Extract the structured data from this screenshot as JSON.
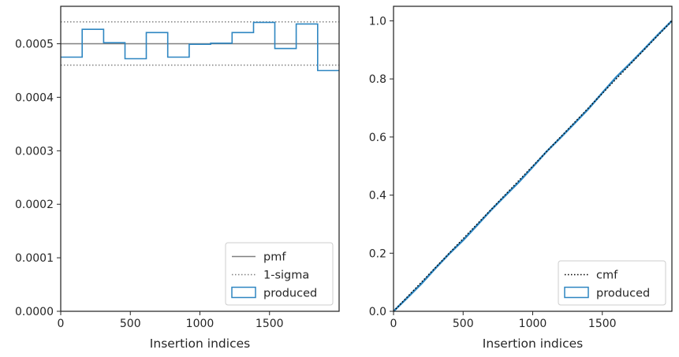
{
  "chart_data": [
    {
      "type": "histogram-step",
      "xlabel": "Insertion indices",
      "ylabel": "",
      "xlim": [
        0,
        2000
      ],
      "ylim": [
        0,
        0.00057
      ],
      "xticks": [
        0,
        500,
        1000,
        1500
      ],
      "xtick_labels": [
        "0",
        "500",
        "1000",
        "1500"
      ],
      "yticks": [
        0,
        0.0001,
        0.0002,
        0.0003,
        0.0004,
        0.0005
      ],
      "ytick_labels": [
        "0.0000",
        "0.0001",
        "0.0002",
        "0.0003",
        "0.0004",
        "0.0005"
      ],
      "grid": false,
      "legend_position": "lower-right",
      "reference_lines": {
        "pmf": 0.0005,
        "sigma_upper": 0.000541,
        "sigma_lower": 0.00046
      },
      "histogram": {
        "bin_edges": [
          0,
          154,
          308,
          462,
          615,
          769,
          923,
          1077,
          1231,
          1385,
          1538,
          1692,
          1846,
          2000
        ],
        "values": [
          0.000475,
          0.000527,
          0.000502,
          0.000472,
          0.000521,
          0.000475,
          0.000499,
          0.000501,
          0.000521,
          0.00054,
          0.000491,
          0.000537,
          0.00045
        ]
      },
      "legend": [
        {
          "label": "pmf",
          "style": "solid",
          "color": "#808080"
        },
        {
          "label": "1-sigma",
          "style": "dotted",
          "color": "#808080"
        },
        {
          "label": "produced",
          "style": "box",
          "color": "#2e86c1"
        }
      ]
    },
    {
      "type": "line",
      "xlabel": "Insertion indices",
      "ylabel": "",
      "xlim": [
        0,
        2000
      ],
      "ylim": [
        0,
        1.05
      ],
      "xticks": [
        0,
        500,
        1000,
        1500
      ],
      "xtick_labels": [
        "0",
        "500",
        "1000",
        "1500"
      ],
      "yticks": [
        0,
        0.2,
        0.4,
        0.6,
        0.8,
        1.0
      ],
      "ytick_labels": [
        "0.0",
        "0.2",
        "0.4",
        "0.6",
        "0.8",
        "1.0"
      ],
      "grid": false,
      "legend_position": "lower-right",
      "series": [
        {
          "style": "dotted",
          "color": "#000000",
          "x": [
            0,
            2000
          ],
          "y": [
            0,
            1.0
          ]
        },
        {
          "style": "solid",
          "color": "#2e86c1",
          "x": [
            0,
            100,
            200,
            300,
            400,
            500,
            600,
            700,
            800,
            900,
            1000,
            1100,
            1200,
            1300,
            1400,
            1500,
            1600,
            1700,
            1800,
            1900,
            2000
          ],
          "y": [
            0,
            0.047,
            0.095,
            0.148,
            0.198,
            0.245,
            0.296,
            0.348,
            0.397,
            0.445,
            0.497,
            0.55,
            0.598,
            0.647,
            0.697,
            0.752,
            0.806,
            0.853,
            0.902,
            0.952,
            1.0
          ]
        }
      ],
      "legend": [
        {
          "label": "cmf",
          "style": "dotted",
          "color": "#000000"
        },
        {
          "label": "produced",
          "style": "box",
          "color": "#2e86c1"
        }
      ]
    }
  ]
}
